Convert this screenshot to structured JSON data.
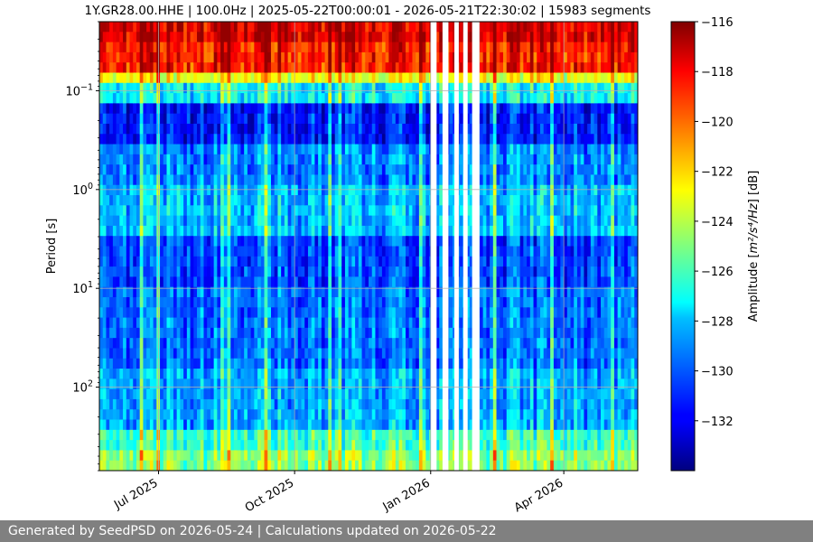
{
  "chart_data": {
    "type": "heatmap",
    "title": "1Y.GR28.00.HHE | 100.0Hz | 2025-05-22T00:00:01 - 2026-05-21T22:30:02 | 15983 segments",
    "ylabel": "Period [s]",
    "xlabel": "",
    "y_scale": "log",
    "y_inverted": true,
    "ylim": [
      0.02,
      700
    ],
    "xlim": [
      "2025-05-22",
      "2026-05-21"
    ],
    "x_ticks": [
      {
        "date": "2025-07-01",
        "label": "Jul 2025"
      },
      {
        "date": "2025-10-01",
        "label": "Oct 2025"
      },
      {
        "date": "2026-01-01",
        "label": "Jan 2026"
      },
      {
        "date": "2026-04-01",
        "label": "Apr 2026"
      }
    ],
    "y_ticks": [
      {
        "value": 0.1,
        "base": "10",
        "exp": "−1"
      },
      {
        "value": 1,
        "base": "10",
        "exp": "0"
      },
      {
        "value": 10,
        "base": "10",
        "exp": "1"
      },
      {
        "value": 100,
        "base": "10",
        "exp": "2"
      }
    ],
    "grid": true,
    "colormap": "jet",
    "colorbar": {
      "label_pre": "Amplitude [",
      "label_math": "m²/s⁴/Hz",
      "label_post": "] [dB]",
      "range": [
        -134,
        -116
      ],
      "ticks": [
        "−116",
        "−118",
        "−120",
        "−122",
        "−124",
        "−126",
        "−128",
        "−130",
        "−132"
      ],
      "tick_values": [
        -116,
        -118,
        -120,
        -122,
        -124,
        -126,
        -128,
        -130,
        -132
      ]
    },
    "data_gaps": [
      [
        "2026-01-01",
        "2026-01-05"
      ],
      [
        "2026-01-09",
        "2026-01-13"
      ],
      [
        "2026-01-17",
        "2026-01-20"
      ],
      [
        "2026-01-23",
        "2026-01-26"
      ],
      [
        "2026-01-29",
        "2026-02-03"
      ]
    ]
  },
  "footer": {
    "text": "Generated by SeedPSD on 2026-05-24 | Calculations updated on 2026-05-22"
  }
}
